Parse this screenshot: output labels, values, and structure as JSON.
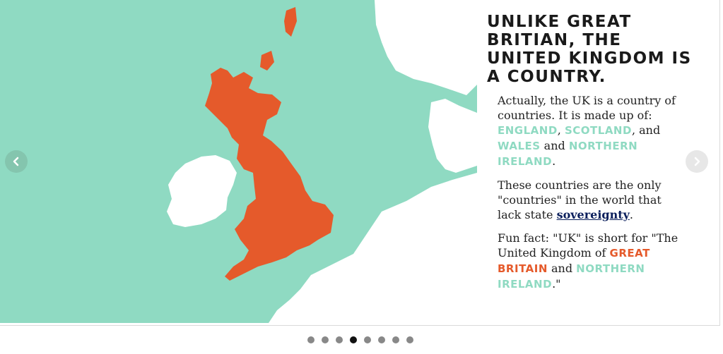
{
  "slide": {
    "heading": "UNLIKE GREAT BRITIAN, THE UNITED KINGDOM IS A COUNTRY.",
    "p1_text_a": "Actually, the UK is a country of countries. It is made up of: ",
    "p1_england": "ENGLAND",
    "p1_sep1": ", ",
    "p1_scotland": "SCOTLAND",
    "p1_sep2": ", and ",
    "p1_wales": "WALES",
    "p1_sep3": " and ",
    "p1_ni": "NORTHERN IRELAND",
    "p1_end": ".",
    "p2_text": "These countries are the only \"countries\" in the world that lack state ",
    "p2_link": "sovereignty",
    "p2_end": ".",
    "p3_text": "Fun fact: \"UK\" is short for \"The United Kingdom of ",
    "p3_gb": "GREAT BRITAIN",
    "p3_and": " and ",
    "p3_ni": "NORTHERN IRELAND",
    "p3_end": ".\""
  },
  "carousel": {
    "prev_icon": "chevron-left-icon",
    "next_icon": "chevron-right-icon",
    "dot_count": 8,
    "active_dot": 4
  },
  "colors": {
    "sea": "#8fdac2",
    "land": "#ffffff",
    "great_britain": "#e55a2b",
    "green_highlight": "#8fdac2",
    "orange_highlight": "#e55a2b",
    "link": "#0b1f5c"
  }
}
